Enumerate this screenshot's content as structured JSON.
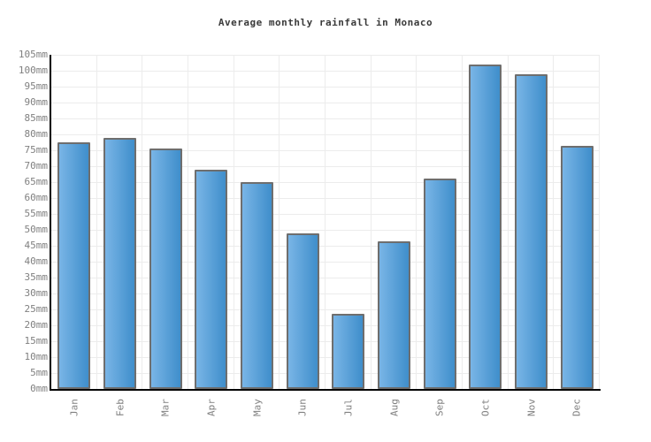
{
  "title": "Average monthly rainfall in Monaco",
  "chart_data": {
    "type": "bar",
    "title": "Average monthly rainfall in Monaco",
    "categories": [
      "Jan",
      "Feb",
      "Mar",
      "Apr",
      "May",
      "Jun",
      "Jul",
      "Aug",
      "Sep",
      "Oct",
      "Nov",
      "Dec"
    ],
    "values": [
      77.5,
      79,
      75.5,
      69,
      65,
      49,
      23.5,
      46.5,
      66,
      102,
      99,
      76.5
    ],
    "unit": "mm",
    "xlabel": "",
    "ylabel": "",
    "ylim": [
      0,
      105
    ],
    "ytick_step": 5,
    "grid": true,
    "legend": "none",
    "colors": {
      "bar_gradient_left": "#79b5e6",
      "bar_gradient_right": "#3f8ecb",
      "bar_border": "#6e6e6e",
      "gridline": "#ececec",
      "axis": "#000000",
      "tick_label": "#808080",
      "title": "#3a3a3a"
    }
  }
}
